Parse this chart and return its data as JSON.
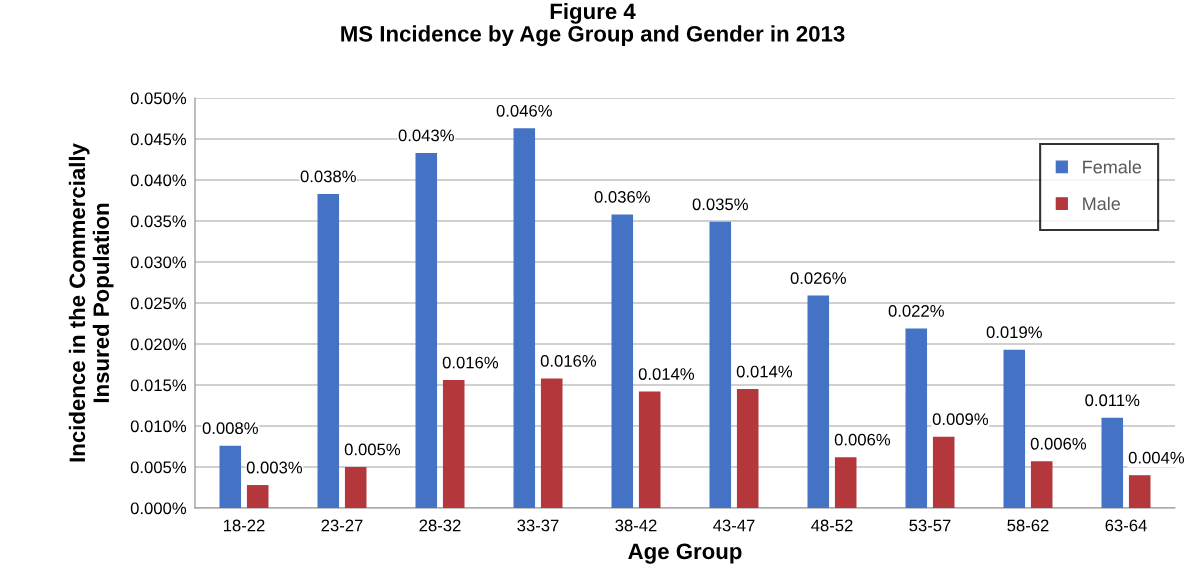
{
  "chart_data": {
    "type": "bar",
    "title": "Figure 4\nMS Incidence by Age Group and Gender in 2013",
    "xlabel": "Age Group",
    "ylabel": "Incidence in the Commercially\nInsured Population",
    "categories": [
      "18-22",
      "23-27",
      "28-32",
      "33-37",
      "38-42",
      "43-47",
      "48-52",
      "53-57",
      "58-62",
      "63-64"
    ],
    "series": [
      {
        "name": "Female",
        "color": "#4472c4",
        "values": [
          0.0076,
          0.0383,
          0.0433,
          0.0463,
          0.0358,
          0.0349,
          0.0259,
          0.0219,
          0.0193,
          0.011
        ],
        "value_labels": [
          "0.008%",
          "0.038%",
          "0.043%",
          "0.046%",
          "0.036%",
          "0.035%",
          "0.026%",
          "0.022%",
          "0.019%",
          "0.011%"
        ]
      },
      {
        "name": "Male",
        "color": "#b3373b",
        "values": [
          0.0028,
          0.005,
          0.0156,
          0.0158,
          0.0142,
          0.0145,
          0.0062,
          0.0087,
          0.0057,
          0.004
        ],
        "value_labels": [
          "0.003%",
          "0.005%",
          "0.016%",
          "0.016%",
          "0.014%",
          "0.014%",
          "0.006%",
          "0.009%",
          "0.006%",
          "0.004%"
        ]
      }
    ],
    "ylim": [
      0,
      0.05
    ],
    "yticks": [
      {
        "value": 0,
        "label": "0.000%"
      },
      {
        "value": 0.005,
        "label": "0.005%"
      },
      {
        "value": 0.01,
        "label": "0.010%"
      },
      {
        "value": 0.015,
        "label": "0.015%"
      },
      {
        "value": 0.02,
        "label": "0.020%"
      },
      {
        "value": 0.025,
        "label": "0.025%"
      },
      {
        "value": 0.03,
        "label": "0.030%"
      },
      {
        "value": 0.035,
        "label": "0.035%"
      },
      {
        "value": 0.04,
        "label": "0.040%"
      },
      {
        "value": 0.045,
        "label": "0.045%"
      },
      {
        "value": 0.05,
        "label": "0.050%"
      }
    ],
    "grid": "y",
    "legend": "top right"
  }
}
